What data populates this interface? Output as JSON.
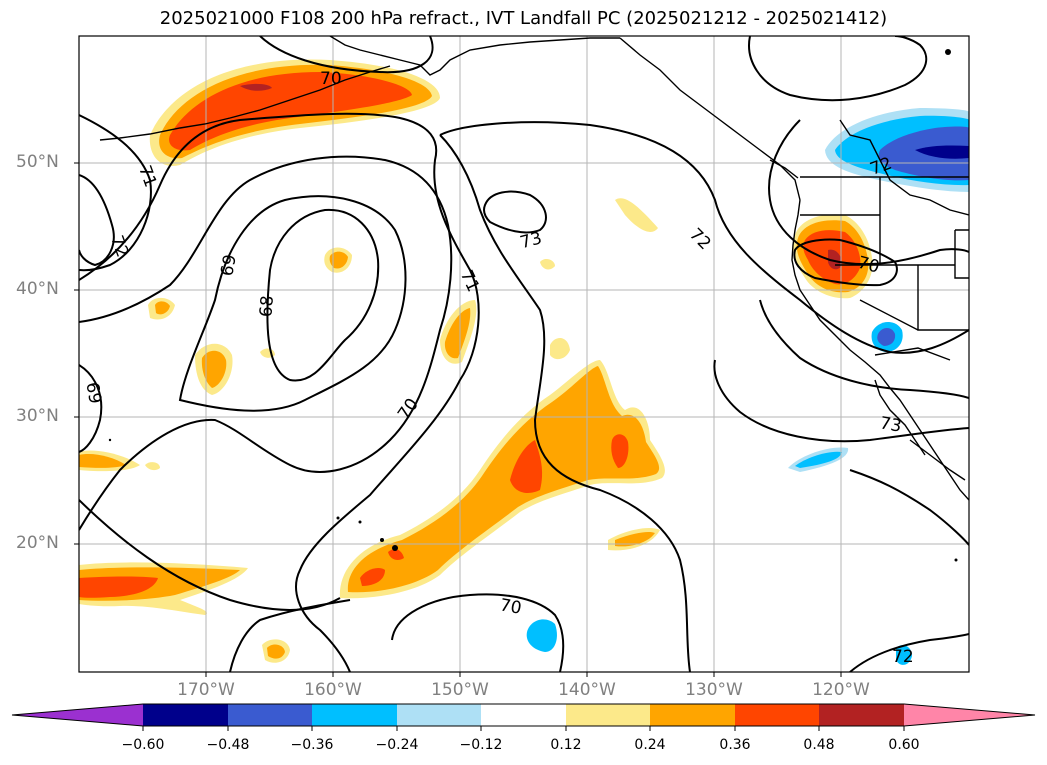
{
  "title": "2025021000 F108 200 hPa refract., IVT Landfall PC (2025021212 - 2025021412)",
  "map": {
    "projection": "equirectangular",
    "lon_range": [
      -180,
      -110
    ],
    "lat_range": [
      10,
      60
    ],
    "gridlines": true,
    "lat_labels": [
      "50°N",
      "40°N",
      "30°N",
      "20°N"
    ],
    "lon_labels": [
      "170°W",
      "160°W",
      "150°W",
      "140°W",
      "130°W",
      "120°W"
    ]
  },
  "contour_labels": [
    "70",
    "71",
    "72",
    "69",
    "68",
    "69",
    "70",
    "71",
    "73",
    "72",
    "70",
    "72",
    "73",
    "70",
    "72"
  ],
  "colorbar": {
    "ticks": [
      "−0.60",
      "−0.48",
      "−0.36",
      "−0.24",
      "−0.12",
      "0.12",
      "0.24",
      "0.36",
      "0.48",
      "0.60"
    ],
    "colors": [
      "#9b30d0",
      "#00008b",
      "#3a5bd0",
      "#00bfff",
      "#aee0f5",
      "#ffffff",
      "#fce98a",
      "#ffa500",
      "#ff4500",
      "#b22222",
      "#ff85a8"
    ],
    "extend": "both"
  }
}
